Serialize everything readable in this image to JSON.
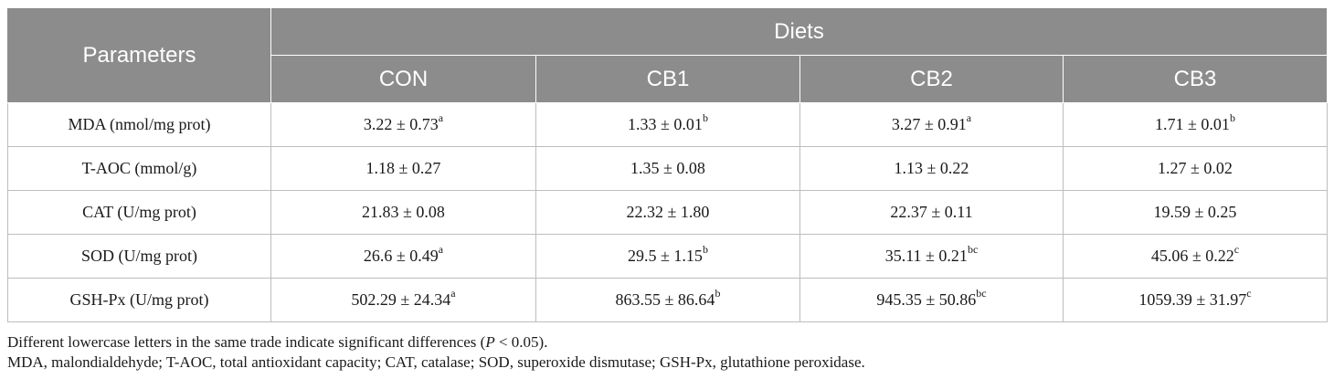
{
  "table": {
    "header": {
      "parameters": "Parameters",
      "group": "Diets",
      "columns": [
        "CON",
        "CB1",
        "CB2",
        "CB3"
      ]
    },
    "rows": [
      {
        "label": "MDA (nmol/mg prot)",
        "cells": [
          {
            "value": "3.22 ± 0.73",
            "sup": "a"
          },
          {
            "value": "1.33 ± 0.01",
            "sup": "b"
          },
          {
            "value": "3.27 ± 0.91",
            "sup": "a"
          },
          {
            "value": "1.71 ± 0.01",
            "sup": "b"
          }
        ]
      },
      {
        "label": "T-AOC (mmol/g)",
        "cells": [
          {
            "value": "1.18 ± 0.27",
            "sup": ""
          },
          {
            "value": "1.35 ± 0.08",
            "sup": ""
          },
          {
            "value": "1.13 ± 0.22",
            "sup": ""
          },
          {
            "value": "1.27 ± 0.02",
            "sup": ""
          }
        ]
      },
      {
        "label": "CAT (U/mg prot)",
        "cells": [
          {
            "value": "21.83 ± 0.08",
            "sup": ""
          },
          {
            "value": "22.32 ± 1.80",
            "sup": ""
          },
          {
            "value": "22.37 ± 0.11",
            "sup": ""
          },
          {
            "value": "19.59 ± 0.25",
            "sup": ""
          }
        ]
      },
      {
        "label": "SOD (U/mg prot)",
        "cells": [
          {
            "value": "26.6 ± 0.49",
            "sup": "a"
          },
          {
            "value": "29.5 ± 1.15",
            "sup": "b"
          },
          {
            "value": "35.11 ± 0.21",
            "sup": "bc"
          },
          {
            "value": "45.06 ± 0.22",
            "sup": "c"
          }
        ]
      },
      {
        "label": "GSH-Px (U/mg prot)",
        "cells": [
          {
            "value": "502.29 ± 24.34",
            "sup": "a"
          },
          {
            "value": "863.55 ± 86.64",
            "sup": "b"
          },
          {
            "value": "945.35 ± 50.86",
            "sup": "bc"
          },
          {
            "value": "1059.39 ± 31.97",
            "sup": "c"
          }
        ]
      }
    ]
  },
  "notes": {
    "line1_prefix": "Different lowercase letters in the same trade indicate significant differences (",
    "line1_p": "P",
    "line1_suffix": " < 0.05).",
    "line2": "MDA, malondialdehyde; T-AOC, total antioxidant capacity; CAT, catalase; SOD, superoxide dismutase; GSH-Px, glutathione peroxidase."
  }
}
